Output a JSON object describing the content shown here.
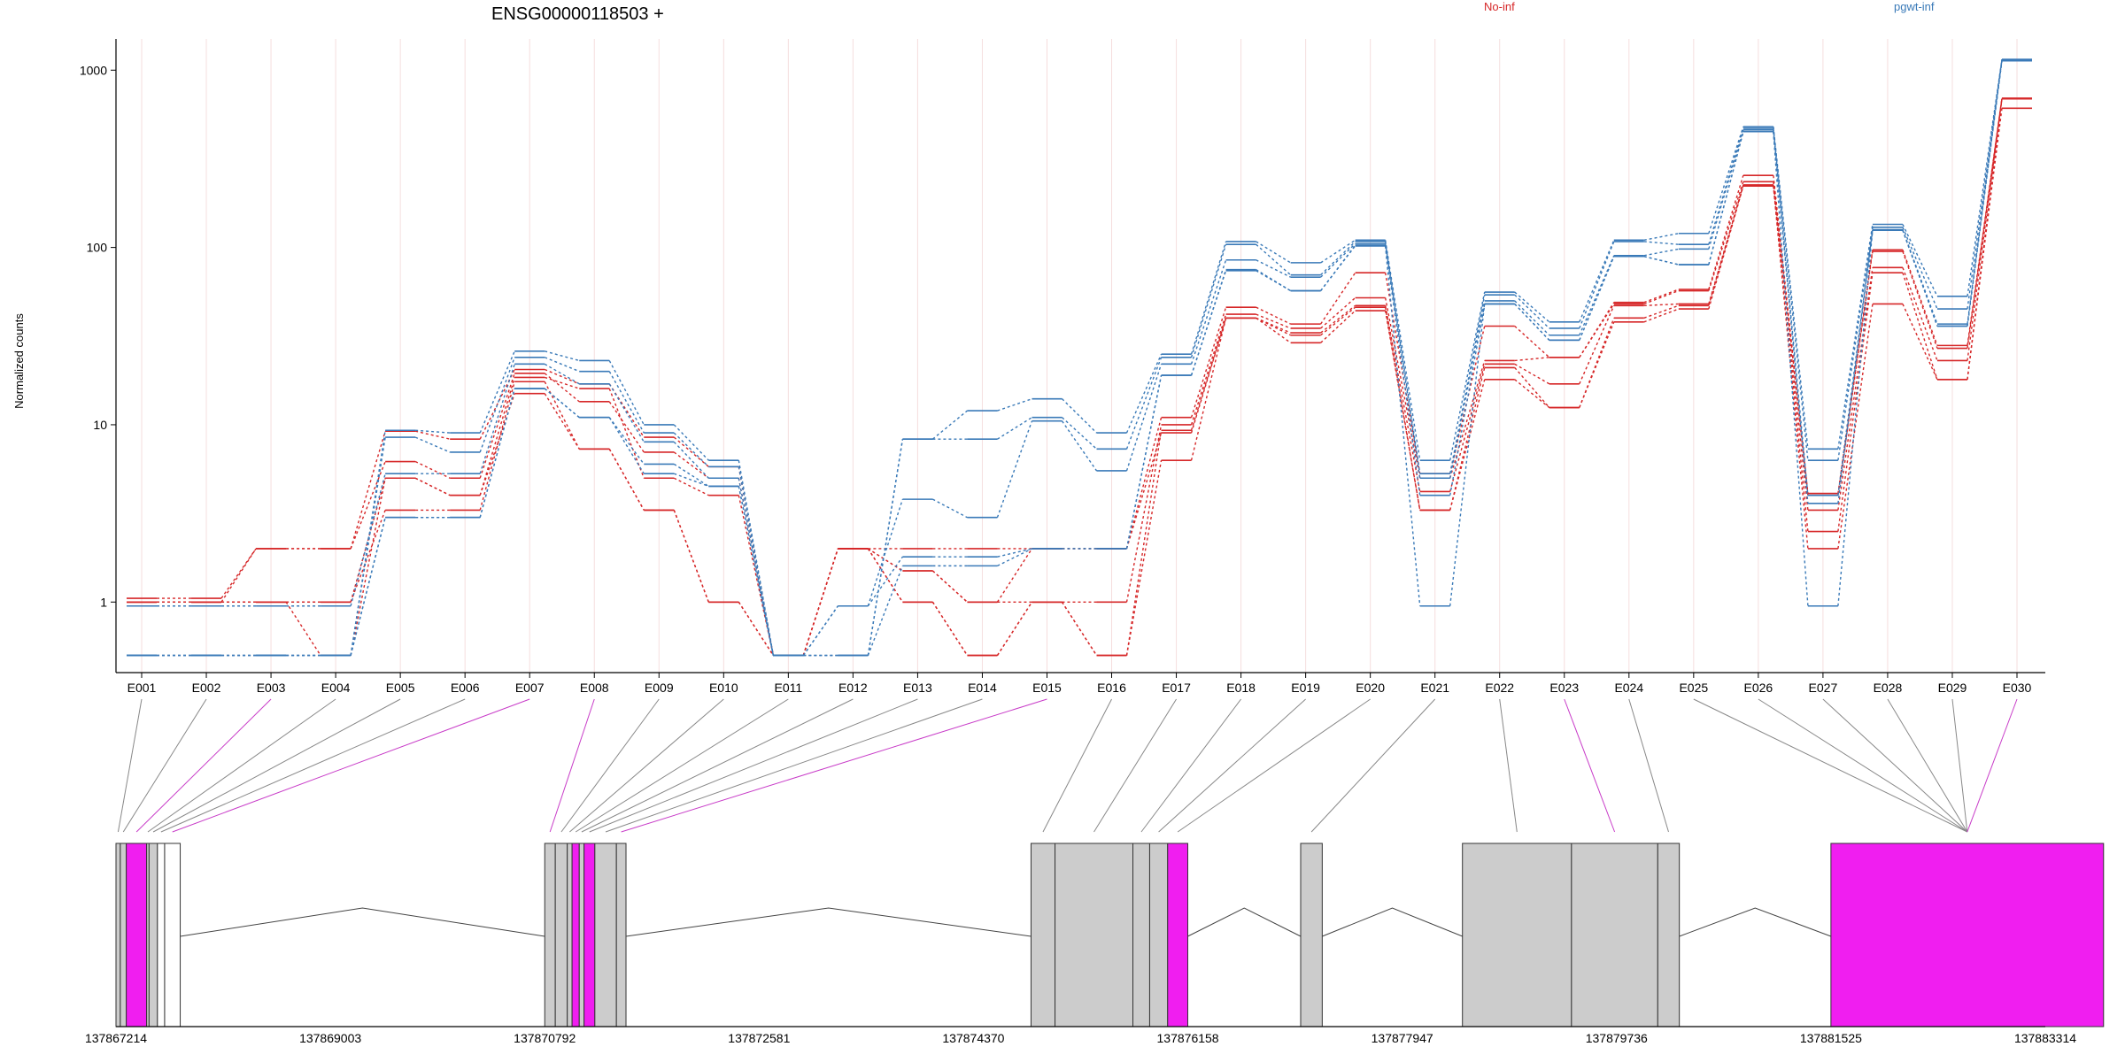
{
  "chart_data": {
    "type": "line",
    "title": "ENSG00000118503 +",
    "xlabel": "",
    "ylabel": "Normalized counts",
    "y_scale": "log",
    "y_ticks": [
      "1",
      "10",
      "100",
      "1000"
    ],
    "grid": "vertical, light pink",
    "legend_placement": "top",
    "categories": [
      "E001",
      "E002",
      "E003",
      "E004",
      "E005",
      "E006",
      "E007",
      "E008",
      "E009",
      "E010",
      "E011",
      "E012",
      "E013",
      "E014",
      "E015",
      "E016",
      "E017",
      "E018",
      "E019",
      "E020",
      "E021",
      "E022",
      "E023",
      "E024",
      "E025",
      "E026",
      "E027",
      "E028",
      "E029",
      "E030"
    ],
    "series": [
      {
        "name": "No-inf",
        "color": "#d62728",
        "values": [
          1.05,
          1.05,
          2.0,
          2.0,
          9.2,
          8.3,
          20.5,
          17.0,
          8.5,
          5.8,
          0.5,
          2.0,
          2.0,
          2.0,
          2.0,
          2.0,
          11.0,
          46,
          37,
          72,
          5.3,
          36,
          24,
          49,
          58,
          255,
          4.1,
          97,
          28,
          695
        ]
      },
      {
        "name": "No-inf",
        "color": "#d62728",
        "values": [
          1.0,
          1.0,
          2.0,
          2.0,
          6.2,
          5.0,
          19.5,
          13.5,
          7.0,
          5.0,
          0.5,
          2.0,
          1.5,
          1.0,
          1.0,
          1.0,
          10.0,
          42,
          35,
          52,
          5.0,
          23,
          24,
          48,
          57,
          235,
          4.0,
          95,
          27,
          690
        ]
      },
      {
        "name": "No-inf",
        "color": "#d62728",
        "values": [
          1.0,
          1.0,
          1.0,
          0.5,
          5.0,
          4.0,
          18.5,
          16.0,
          5.0,
          4.0,
          0.5,
          2.0,
          1.0,
          0.5,
          1.0,
          0.5,
          9.3,
          40,
          33,
          47,
          4.2,
          22,
          17,
          47,
          48,
          225,
          3.3,
          77,
          23,
          690
        ]
      },
      {
        "name": "No-inf",
        "color": "#d62728",
        "values": [
          1.0,
          1.0,
          1.0,
          1.0,
          3.3,
          3.3,
          17.5,
          7.3,
          3.3,
          1.0,
          0.5,
          2.0,
          1.5,
          1.0,
          2.0,
          2.0,
          9.0,
          40,
          32,
          46,
          3.3,
          21,
          12.5,
          40,
          47,
          225,
          2.5,
          72,
          18,
          690
        ]
      },
      {
        "name": "No-inf",
        "color": "#d62728",
        "values": [
          1.0,
          1.0,
          1.0,
          1.0,
          5.0,
          4.0,
          15.0,
          7.3,
          3.3,
          1.0,
          0.5,
          2.0,
          1.0,
          0.5,
          1.0,
          0.5,
          6.3,
          40,
          29,
          44,
          3.3,
          18,
          12.5,
          38,
          45,
          222,
          2.0,
          48,
          18,
          610
        ]
      },
      {
        "name": "pgwt-inf",
        "color": "#3a7ab8",
        "values": [
          0.5,
          0.5,
          0.5,
          0.5,
          9.3,
          9.0,
          26,
          23,
          10.0,
          6.3,
          0.5,
          0.5,
          8.3,
          12.0,
          14.0,
          9.0,
          25,
          108,
          82,
          110,
          6.3,
          56,
          38,
          110,
          120,
          480,
          7.3,
          135,
          53,
          1150
        ]
      },
      {
        "name": "pgwt-inf",
        "color": "#3a7ab8",
        "values": [
          0.5,
          0.5,
          0.5,
          0.5,
          8.5,
          7.0,
          24,
          20,
          9.0,
          5.8,
          0.5,
          0.5,
          8.3,
          8.3,
          11.0,
          7.3,
          24,
          104,
          70,
          108,
          5.3,
          54,
          35,
          108,
          104,
          470,
          6.3,
          130,
          45,
          1150
        ]
      },
      {
        "name": "pgwt-inf",
        "color": "#3a7ab8",
        "values": [
          0.95,
          0.95,
          0.95,
          0.95,
          5.3,
          5.3,
          22,
          17,
          8.0,
          5.0,
          0.5,
          0.95,
          3.8,
          3.0,
          10.5,
          5.5,
          22,
          85,
          68,
          105,
          5.0,
          50,
          32,
          90,
          98,
          460,
          4.0,
          126,
          37,
          1140
        ]
      },
      {
        "name": "pgwt-inf",
        "color": "#3a7ab8",
        "values": [
          0.5,
          0.5,
          0.5,
          0.5,
          3.0,
          3.0,
          16,
          11.0,
          6.0,
          4.5,
          0.5,
          0.95,
          1.8,
          1.8,
          2.0,
          2.0,
          19.0,
          75,
          57,
          103,
          4.0,
          48,
          30,
          89,
          80,
          450,
          3.6,
          125,
          36,
          1130
        ]
      },
      {
        "name": "pgwt-inf",
        "color": "#3a7ab8",
        "values": [
          0.5,
          0.5,
          0.5,
          0.5,
          3.0,
          3.0,
          16,
          11.0,
          5.3,
          4.5,
          0.5,
          0.5,
          1.6,
          1.6,
          2.0,
          2.0,
          19.0,
          74,
          57,
          102,
          0.95,
          48,
          30,
          89,
          80,
          450,
          0.95,
          125,
          36,
          1130
        ]
      }
    ],
    "gene_model": {
      "coordinate_labels": [
        "137867214",
        "137869003",
        "137870792",
        "137872581",
        "137874370",
        "137876158",
        "137877947",
        "137879736",
        "137881525",
        "137883314"
      ],
      "coordinate_range": [
        137867214,
        137883314
      ],
      "highlighted_exons": [
        "E003",
        "E007",
        "E008",
        "E015",
        "E023",
        "E030"
      ],
      "highlight_color": "#f01ef0",
      "exon_color": "#cccccc",
      "exon_links": [
        {
          "exon": "E001",
          "start": 137867214,
          "end": 137867250,
          "fill": "gray"
        },
        {
          "exon": "E002",
          "start": 137867250,
          "end": 137867300,
          "fill": "gray"
        },
        {
          "exon": "E003",
          "start": 137867300,
          "end": 137867470,
          "fill": "magenta"
        },
        {
          "exon": "E004",
          "start": 137867470,
          "end": 137867490,
          "fill": "gray"
        },
        {
          "exon": "E005",
          "start": 137867490,
          "end": 137867560,
          "fill": "gray"
        },
        {
          "exon": "E006",
          "start": 137867560,
          "end": 137867620,
          "fill": "white"
        },
        {
          "exon": "E007",
          "start": 137867620,
          "end": 137867750,
          "fill": "white"
        },
        {
          "exon": "E008",
          "start": 137870792,
          "end": 137870880,
          "fill": "gray"
        },
        {
          "exon": "E009",
          "start": 137870880,
          "end": 137870980,
          "fill": "gray"
        },
        {
          "exon": "E010",
          "start": 137870980,
          "end": 137871020,
          "fill": "gray"
        },
        {
          "exon": "E011",
          "start": 137871020,
          "end": 137871080,
          "fill": "magenta"
        },
        {
          "exon": "E012",
          "start": 137871080,
          "end": 137871120,
          "fill": "gray"
        },
        {
          "exon": "E013",
          "start": 137871120,
          "end": 137871210,
          "fill": "magenta"
        },
        {
          "exon": "E014",
          "start": 137871210,
          "end": 137871390,
          "fill": "gray"
        },
        {
          "exon": "E015",
          "start": 137871390,
          "end": 137871470,
          "fill": "gray"
        },
        {
          "exon": "E016",
          "start": 137874850,
          "end": 137875050,
          "fill": "gray"
        },
        {
          "exon": "E017",
          "start": 137875050,
          "end": 137875700,
          "fill": "gray"
        },
        {
          "exon": "E018",
          "start": 137875700,
          "end": 137875840,
          "fill": "gray"
        },
        {
          "exon": "E019",
          "start": 137875840,
          "end": 137875990,
          "fill": "gray"
        },
        {
          "exon": "E020",
          "start": 137875990,
          "end": 137876158,
          "fill": "magenta"
        },
        {
          "exon": "E021",
          "start": 137877100,
          "end": 137877280,
          "fill": "gray"
        },
        {
          "exon": "E022",
          "start": 137878450,
          "end": 137879360,
          "fill": "gray"
        },
        {
          "exon": "E023",
          "start": 137879360,
          "end": 137880080,
          "fill": "gray"
        },
        {
          "exon": "E024",
          "start": 137880080,
          "end": 137880260,
          "fill": "gray"
        },
        {
          "exon": "E025",
          "start": 137881525,
          "end": 137883800,
          "fill": "magenta"
        }
      ]
    }
  }
}
